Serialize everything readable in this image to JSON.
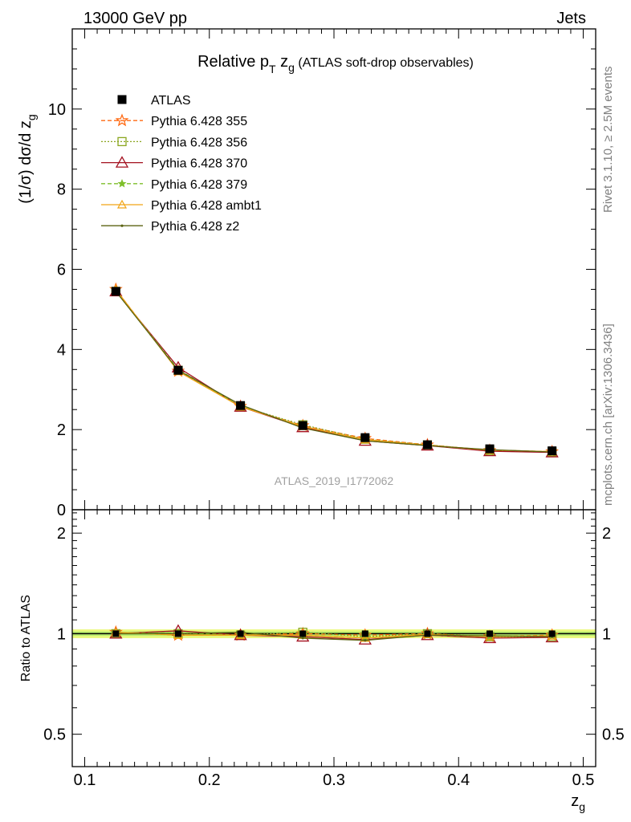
{
  "header": {
    "left": "13000 GeV pp",
    "right": "Jets"
  },
  "plot_title": {
    "prefix": "Relative p",
    "sub_T": "T",
    "z": " z",
    "sub_g": "g",
    "suffix": " (ATLAS soft-drop observables)"
  },
  "ylabel_main": "(1/σ) dσ/d z",
  "ylabel_main_sub": "g",
  "ylabel_ratio": "Ratio to ATLAS",
  "xlabel": "z",
  "xlabel_sub": "g",
  "analysis_id": "ATLAS_2019_I1772062",
  "side_text_top": "Rivet 3.1.10, ≥ 2.5M events",
  "side_text_bottom": "mcplots.cern.ch [arXiv:1306.3436]",
  "colors": {
    "ATLAS": "#000000",
    "Pythia 6.428 355": "#ff6a13",
    "Pythia 6.428 356": "#8aa61f",
    "Pythia 6.428 370": "#a3101f",
    "Pythia 6.428 379": "#7ebf2a",
    "Pythia 6.428 ambt1": "#f2a516",
    "Pythia 6.428 z2": "#5b6312",
    "band_outer": "#eaf97c",
    "band_inner": "#b9ee6e"
  },
  "chart_data": [
    {
      "type": "line",
      "panel": "main",
      "x": [
        0.125,
        0.175,
        0.225,
        0.275,
        0.325,
        0.375,
        0.425,
        0.475
      ],
      "xlim": [
        0.09,
        0.51
      ],
      "ylim": [
        0,
        12
      ],
      "yticks": [
        "0",
        "2",
        "4",
        "6",
        "8",
        "10"
      ],
      "grid": false,
      "legend": "top-left",
      "series": [
        {
          "name": "ATLAS",
          "values": [
            5.45,
            3.48,
            2.6,
            2.1,
            1.8,
            1.62,
            1.52,
            1.47
          ]
        },
        {
          "name": "Pythia 6.428 355",
          "values": [
            5.5,
            3.46,
            2.58,
            2.1,
            1.78,
            1.62,
            1.48,
            1.45
          ]
        },
        {
          "name": "Pythia 6.428 356",
          "values": [
            5.45,
            3.48,
            2.58,
            2.12,
            1.76,
            1.62,
            1.48,
            1.44
          ]
        },
        {
          "name": "Pythia 6.428 370",
          "values": [
            5.45,
            3.55,
            2.57,
            2.06,
            1.72,
            1.6,
            1.46,
            1.43
          ]
        },
        {
          "name": "Pythia 6.428 379",
          "values": [
            5.47,
            3.5,
            2.58,
            2.08,
            1.74,
            1.6,
            1.49,
            1.45
          ]
        },
        {
          "name": "Pythia 6.428 ambt1",
          "values": [
            5.5,
            3.45,
            2.57,
            2.08,
            1.75,
            1.61,
            1.49,
            1.45
          ]
        },
        {
          "name": "Pythia 6.428 z2",
          "values": [
            5.45,
            3.48,
            2.62,
            2.04,
            1.72,
            1.6,
            1.5,
            1.44
          ]
        }
      ]
    },
    {
      "type": "line",
      "panel": "ratio",
      "x": [
        0.125,
        0.175,
        0.225,
        0.275,
        0.325,
        0.375,
        0.425,
        0.475
      ],
      "xlim": [
        0.09,
        0.51
      ],
      "xticks": [
        "0.1",
        "0.2",
        "0.3",
        "0.4",
        "0.5"
      ],
      "ylim": [
        0.4,
        2.35
      ],
      "yscale": "log",
      "yticks": [
        "0.5",
        "1",
        "2"
      ],
      "band": {
        "outer": [
          0.97,
          1.03
        ],
        "inner": [
          0.985,
          1.015
        ]
      },
      "series": [
        {
          "name": "Pythia 6.428 355",
          "values": [
            1.01,
            0.99,
            0.99,
            1.0,
            0.99,
            1.0,
            0.98,
            0.99
          ]
        },
        {
          "name": "Pythia 6.428 356",
          "values": [
            1.0,
            1.0,
            0.99,
            1.01,
            0.98,
            1.0,
            0.98,
            0.98
          ]
        },
        {
          "name": "Pythia 6.428 370",
          "values": [
            1.0,
            1.02,
            0.99,
            0.98,
            0.96,
            0.99,
            0.97,
            0.975
          ]
        },
        {
          "name": "Pythia 6.428 379",
          "values": [
            1.005,
            1.005,
            0.99,
            0.99,
            0.97,
            0.99,
            0.98,
            0.985
          ]
        },
        {
          "name": "Pythia 6.428 ambt1",
          "values": [
            1.01,
            0.99,
            0.99,
            0.99,
            0.97,
            0.995,
            0.98,
            0.985
          ]
        },
        {
          "name": "Pythia 6.428 z2",
          "values": [
            1.0,
            1.0,
            1.01,
            0.97,
            0.955,
            0.99,
            0.985,
            0.98
          ]
        }
      ]
    }
  ]
}
